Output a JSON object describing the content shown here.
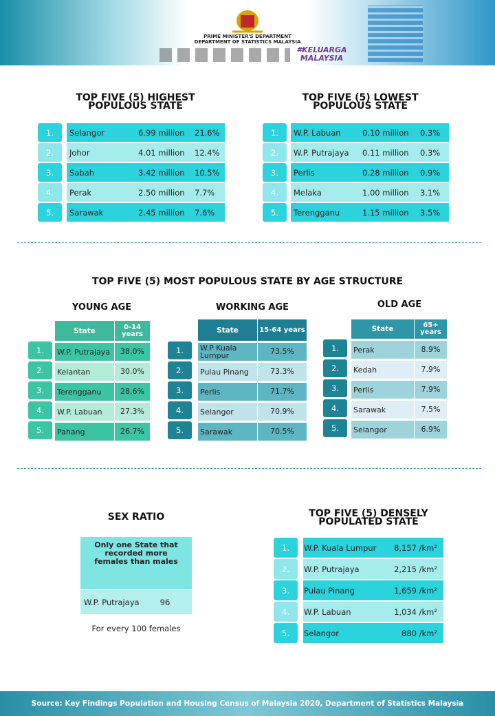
{
  "header": {
    "dept": "PRIME MINISTER'S DEPARTMENT",
    "dept2": "DEPARTMENT OF STATISTICS MALAYSIA",
    "hashtag": "#KELUARGA",
    "hashtag2": "MALAYSIA"
  },
  "highest": {
    "title": "TOP FIVE (5) HIGHEST POPULOUS STATE",
    "rows": [
      [
        "1.",
        "Selangor",
        "6.99 million",
        "21.6%"
      ],
      [
        "2.",
        "Johor",
        "4.01 million",
        "12.4%"
      ],
      [
        "3.",
        "Sabah",
        "3.42 million",
        "10.5%"
      ],
      [
        "4.",
        "Perak",
        "2.50 million",
        "7.7%"
      ],
      [
        "5.",
        "Sarawak",
        "2.45 million",
        "7.6%"
      ]
    ]
  },
  "lowest": {
    "title": "TOP FIVE (5) LOWEST POPULOUS STATE",
    "rows": [
      [
        "1.",
        "W.P. Labuan",
        "0.10 million",
        "0.3%"
      ],
      [
        "2.",
        "W.P. Putrajaya",
        "0.11 million",
        "0.3%"
      ],
      [
        "3.",
        "Perlis",
        "0.28 million",
        "0.9%"
      ],
      [
        "4.",
        "Melaka",
        "1.00 million",
        "3.1%"
      ],
      [
        "5.",
        "Terengganu",
        "1.15 million",
        "3.5%"
      ]
    ]
  },
  "age": {
    "title": "TOP FIVE (5) MOST POPULOUS STATE BY AGE STRUCTURE",
    "young": {
      "title": "YOUNG AGE",
      "header": [
        "State",
        "0-14 years"
      ],
      "rows": [
        [
          "1.",
          "W.P. Putrajaya",
          "38.0%"
        ],
        [
          "2.",
          "Kelantan",
          "30.0%"
        ],
        [
          "3.",
          "Terengganu",
          "28.6%"
        ],
        [
          "4.",
          "W.P. Labuan",
          "27.3%"
        ],
        [
          "5.",
          "Pahang",
          "26.7%"
        ]
      ]
    },
    "working": {
      "title": "WORKING AGE",
      "header": [
        "State",
        "15-64 years"
      ],
      "rows": [
        [
          "1.",
          "W.P Kuala Lumpur",
          "73.5%"
        ],
        [
          "2.",
          "Pulau Pinang",
          "73.3%"
        ],
        [
          "3.",
          "Perlis",
          "71.7%"
        ],
        [
          "4.",
          "Selangor",
          "70.9%"
        ],
        [
          "5.",
          "Sarawak",
          "70.5%"
        ]
      ]
    },
    "old": {
      "title": "OLD AGE",
      "header": [
        "State",
        "65+ years"
      ],
      "rows": [
        [
          "1.",
          "Perak",
          "8.9%"
        ],
        [
          "2.",
          "Kedah",
          "7.9%"
        ],
        [
          "3.",
          "Perlis",
          "7.9%"
        ],
        [
          "4.",
          "Sarawak",
          "7.5%"
        ],
        [
          "5.",
          "Selangor",
          "6.9%"
        ]
      ]
    }
  },
  "sex_ratio": {
    "title": "SEX RATIO",
    "note": "Only one State that recorded more females than males",
    "state": "W.P. Putrajaya",
    "value": "96",
    "footnote": "For every 100 females"
  },
  "dense": {
    "title": "TOP FIVE (5) DENSELY POPULATED STATE",
    "rows": [
      [
        "1.",
        "W.P. Kuala Lumpur",
        "8,157 /km²"
      ],
      [
        "2.",
        "W.P. Putrajaya",
        "2,215 /km²"
      ],
      [
        "3.",
        "Pulau Pinang",
        "1,659 /km²"
      ],
      [
        "4.",
        "W.P. Labuan",
        "1,034 /km²"
      ],
      [
        "5.",
        "Selangor",
        "880 /km²"
      ]
    ]
  },
  "source": "Source: Key Findings Population and Housing Census of Malaysia 2020, Department of Statistics Malaysia"
}
